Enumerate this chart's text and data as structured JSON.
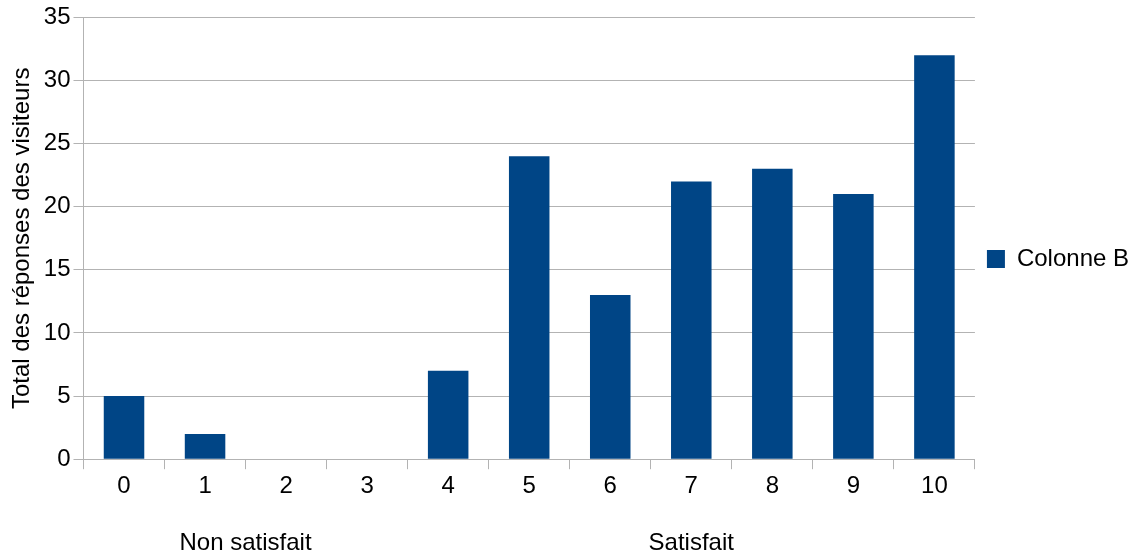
{
  "chart_data": {
    "type": "bar",
    "ylabel": "Total des réponses des visiteurs",
    "categories": [
      "0",
      "1",
      "2",
      "3",
      "4",
      "5",
      "6",
      "7",
      "8",
      "9",
      "10"
    ],
    "series": [
      {
        "name": "Colonne B",
        "color": "#004586",
        "values": [
          5,
          2,
          0,
          0,
          7,
          24,
          13,
          22,
          23,
          21,
          32
        ]
      }
    ],
    "ylim": [
      0,
      35
    ],
    "yticks": [
      0,
      5,
      10,
      15,
      20,
      25,
      30,
      35
    ],
    "grid": "y",
    "legend": "right",
    "annotations": [
      "Non satisfait",
      "Satisfait"
    ]
  }
}
